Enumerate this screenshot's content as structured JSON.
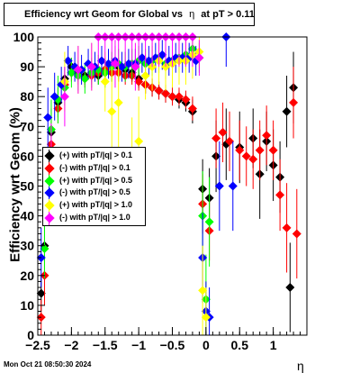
{
  "title": {
    "prefix": "Efficiency wrt Geom for Global vs",
    "eta": "η",
    "suffix": "at pT > 0.11"
  },
  "timestamp": "Mon Oct 21 08:50:30 2024",
  "chart_data": {
    "type": "scatter",
    "xlabel": "η",
    "ylabel": "Efficiency wrt Geom (%)",
    "xlim": [
      -2.5,
      1.5
    ],
    "ylim": [
      0,
      100
    ],
    "x_ticks": [
      -2.5,
      -2,
      -1.5,
      -1,
      -0.5,
      0,
      0.5,
      1
    ],
    "x_tick_labels": [
      "−2.5",
      "−2",
      "−1.5",
      "−1",
      "−0.5",
      "0",
      "0.5",
      "1"
    ],
    "y_ticks": [
      0,
      10,
      20,
      30,
      40,
      50,
      60,
      70,
      80,
      90,
      100
    ],
    "legend_position": "middle-left",
    "series": [
      {
        "name": "(+) with pT/|q| > 0.1",
        "color": "#000000",
        "points": [
          [
            -2.45,
            14,
            6
          ],
          [
            -2.4,
            30,
            8
          ],
          [
            -2.3,
            68,
            8
          ],
          [
            -2.2,
            78,
            5
          ],
          [
            -2.1,
            86,
            4
          ],
          [
            -2.0,
            90,
            3
          ],
          [
            -1.9,
            88,
            3
          ],
          [
            -1.8,
            87,
            3
          ],
          [
            -1.7,
            88,
            3
          ],
          [
            -1.6,
            87,
            3
          ],
          [
            -1.5,
            89,
            3
          ],
          [
            -1.4,
            90,
            3
          ],
          [
            -1.3,
            90,
            3
          ],
          [
            -1.2,
            89,
            3
          ],
          [
            -1.1,
            88,
            3
          ],
          [
            -1.0,
            86,
            3
          ],
          [
            -0.9,
            84,
            3
          ],
          [
            -0.8,
            83,
            3
          ],
          [
            -0.7,
            82,
            3
          ],
          [
            -0.6,
            81,
            3
          ],
          [
            -0.5,
            80,
            3
          ],
          [
            -0.4,
            79,
            3
          ],
          [
            -0.3,
            78,
            3
          ],
          [
            -0.2,
            75,
            4
          ],
          [
            -0.05,
            49,
            10
          ],
          [
            0.05,
            46,
            10
          ],
          [
            0.15,
            60,
            12
          ],
          [
            0.3,
            64,
            12
          ],
          [
            0.5,
            63,
            12
          ],
          [
            0.7,
            66,
            10
          ],
          [
            0.8,
            54,
            15
          ],
          [
            0.9,
            65,
            10
          ],
          [
            1.0,
            57,
            12
          ],
          [
            1.1,
            53,
            12
          ],
          [
            1.2,
            75,
            12
          ],
          [
            1.25,
            16,
            15
          ],
          [
            1.3,
            83,
            12
          ]
        ]
      },
      {
        "name": "(-) with pT/|q| > 0.1",
        "color": "#ff0000",
        "points": [
          [
            -2.45,
            6,
            6
          ],
          [
            -2.4,
            20,
            10
          ],
          [
            -2.3,
            64,
            8
          ],
          [
            -2.2,
            76,
            5
          ],
          [
            -2.1,
            84,
            4
          ],
          [
            -2.0,
            88,
            3
          ],
          [
            -1.9,
            87,
            3
          ],
          [
            -1.8,
            86,
            3
          ],
          [
            -1.7,
            87,
            3
          ],
          [
            -1.6,
            88,
            3
          ],
          [
            -1.5,
            89,
            3
          ],
          [
            -1.4,
            88,
            3
          ],
          [
            -1.3,
            88,
            3
          ],
          [
            -1.2,
            87,
            3
          ],
          [
            -1.1,
            87,
            3
          ],
          [
            -1.0,
            85,
            3
          ],
          [
            -0.9,
            84,
            3
          ],
          [
            -0.8,
            83,
            3
          ],
          [
            -0.7,
            82,
            3
          ],
          [
            -0.6,
            81,
            3
          ],
          [
            -0.5,
            80,
            3
          ],
          [
            -0.4,
            80,
            3
          ],
          [
            -0.3,
            79,
            3
          ],
          [
            -0.2,
            76,
            4
          ],
          [
            -0.05,
            44,
            10
          ],
          [
            0.05,
            35,
            10
          ],
          [
            0.15,
            66,
            10
          ],
          [
            0.25,
            68,
            10
          ],
          [
            0.35,
            65,
            10
          ],
          [
            0.5,
            62,
            10
          ],
          [
            0.6,
            60,
            10
          ],
          [
            0.7,
            59,
            10
          ],
          [
            0.8,
            62,
            10
          ],
          [
            0.9,
            67,
            10
          ],
          [
            1.0,
            62,
            10
          ],
          [
            1.1,
            47,
            12
          ],
          [
            1.2,
            36,
            15
          ],
          [
            1.3,
            78,
            12
          ],
          [
            1.35,
            34,
            15
          ]
        ]
      },
      {
        "name": "(+) with pT/|q| > 0.5",
        "color": "#00ff00",
        "points": [
          [
            -2.4,
            29,
            10
          ],
          [
            -2.3,
            69,
            10
          ],
          [
            -2.2,
            79,
            8
          ],
          [
            -2.1,
            83,
            6
          ],
          [
            -2.0,
            88,
            5
          ],
          [
            -1.9,
            87,
            5
          ],
          [
            -1.8,
            86,
            5
          ],
          [
            -1.7,
            88,
            5
          ],
          [
            -1.6,
            89,
            5
          ],
          [
            -1.5,
            88,
            5
          ],
          [
            -1.4,
            90,
            5
          ],
          [
            -1.3,
            91,
            5
          ],
          [
            -1.2,
            90,
            5
          ],
          [
            -1.1,
            91,
            5
          ],
          [
            -1.0,
            92,
            5
          ],
          [
            -0.9,
            91,
            5
          ],
          [
            -0.8,
            92,
            5
          ],
          [
            -0.7,
            93,
            5
          ],
          [
            -0.6,
            91,
            5
          ],
          [
            -0.5,
            92,
            5
          ],
          [
            -0.4,
            93,
            5
          ],
          [
            -0.3,
            94,
            5
          ],
          [
            -0.2,
            96,
            4
          ],
          [
            -0.1,
            93,
            5
          ],
          [
            -0.05,
            40,
            15
          ],
          [
            0.0,
            12,
            15
          ],
          [
            0.05,
            38,
            15
          ]
        ]
      },
      {
        "name": "(-) with pT/|q| > 0.5",
        "color": "#0000ff",
        "points": [
          [
            -2.45,
            26,
            10
          ],
          [
            -2.35,
            73,
            10
          ],
          [
            -2.25,
            80,
            8
          ],
          [
            -2.15,
            84,
            6
          ],
          [
            -2.05,
            92,
            5
          ],
          [
            -1.95,
            90,
            5
          ],
          [
            -1.85,
            89,
            5
          ],
          [
            -1.75,
            91,
            5
          ],
          [
            -1.65,
            90,
            5
          ],
          [
            -1.55,
            92,
            5
          ],
          [
            -1.45,
            91,
            5
          ],
          [
            -1.35,
            92,
            5
          ],
          [
            -1.25,
            90,
            5
          ],
          [
            -1.15,
            91,
            5
          ],
          [
            -1.05,
            91,
            5
          ],
          [
            -0.95,
            93,
            5
          ],
          [
            -0.85,
            92,
            5
          ],
          [
            -0.75,
            93,
            5
          ],
          [
            -0.65,
            94,
            5
          ],
          [
            -0.55,
            92,
            5
          ],
          [
            -0.45,
            93,
            5
          ],
          [
            -0.35,
            93,
            5
          ],
          [
            -0.25,
            93,
            5
          ],
          [
            -0.15,
            92,
            5
          ],
          [
            -0.05,
            26,
            15
          ],
          [
            0.0,
            8,
            10
          ],
          [
            0.05,
            6,
            10
          ],
          [
            0.2,
            50,
            15
          ],
          [
            0.3,
            100,
            10
          ],
          [
            0.4,
            50,
            15
          ]
        ]
      },
      {
        "name": "(+) with pT/|q| > 1.0",
        "color": "#ffff00",
        "points": [
          [
            -2.3,
            58,
            12
          ],
          [
            -2.1,
            85,
            10
          ],
          [
            -1.9,
            89,
            8
          ],
          [
            -1.7,
            90,
            8
          ],
          [
            -1.5,
            85,
            10
          ],
          [
            -1.4,
            75,
            15
          ],
          [
            -1.3,
            78,
            15
          ],
          [
            -1.1,
            58,
            15
          ],
          [
            -1.0,
            65,
            15
          ],
          [
            -0.9,
            87,
            8
          ],
          [
            -0.8,
            90,
            8
          ],
          [
            -0.7,
            92,
            8
          ],
          [
            -0.6,
            90,
            8
          ],
          [
            -0.5,
            91,
            8
          ],
          [
            -0.4,
            92,
            8
          ],
          [
            -0.3,
            92,
            8
          ],
          [
            -0.2,
            94,
            8
          ],
          [
            -0.1,
            95,
            5
          ],
          [
            -0.05,
            15,
            15
          ],
          [
            0.0,
            6,
            10
          ]
        ]
      },
      {
        "name": "(-) with pT/|q| > 1.0",
        "color": "#ff00ff",
        "points": [
          [
            -2.3,
            59,
            12
          ],
          [
            -2.1,
            80,
            10
          ],
          [
            -1.9,
            89,
            8
          ],
          [
            -1.7,
            90,
            8
          ],
          [
            -1.6,
            100,
            10
          ],
          [
            -1.5,
            100,
            10
          ],
          [
            -1.4,
            100,
            10
          ],
          [
            -1.35,
            91,
            8
          ],
          [
            -1.3,
            100,
            10
          ],
          [
            -1.2,
            100,
            10
          ],
          [
            -1.1,
            100,
            10
          ],
          [
            -1.05,
            90,
            8
          ],
          [
            -1.0,
            100,
            10
          ],
          [
            -0.9,
            100,
            10
          ],
          [
            -0.8,
            100,
            10
          ],
          [
            -0.7,
            100,
            10
          ],
          [
            -0.6,
            100,
            10
          ],
          [
            -0.5,
            100,
            10
          ],
          [
            -0.4,
            100,
            10
          ],
          [
            -0.3,
            100,
            10
          ],
          [
            -0.2,
            100,
            10
          ],
          [
            -0.1,
            93,
            6
          ]
        ]
      }
    ]
  }
}
